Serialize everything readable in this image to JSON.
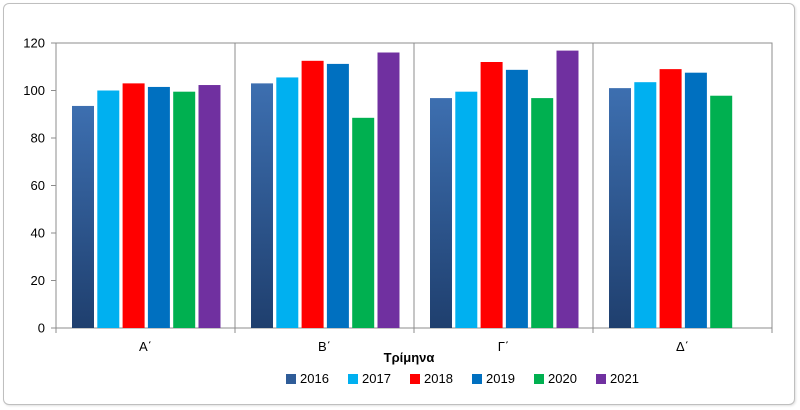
{
  "chart_data": {
    "type": "bar",
    "title": "",
    "xlabel": "Τρίμηνα",
    "ylabel": "",
    "categories": [
      "Α΄",
      "Β΄",
      "Γ΄",
      "Δ΄"
    ],
    "ylim": [
      0,
      120
    ],
    "yticks": [
      0,
      20,
      40,
      60,
      80,
      100,
      120
    ],
    "grid": "vertical category separators",
    "legend_position": "bottom",
    "series": [
      {
        "name": "2016",
        "color": "#2f5c98",
        "values": [
          93.5,
          103,
          96.8,
          101
        ]
      },
      {
        "name": "2017",
        "color": "#00b0f0",
        "values": [
          100,
          105.5,
          99.5,
          103.5
        ]
      },
      {
        "name": "2018",
        "color": "#ff0000",
        "values": [
          103,
          112.5,
          112,
          109
        ]
      },
      {
        "name": "2019",
        "color": "#0070c0",
        "values": [
          101.5,
          111.2,
          108.7,
          107.5
        ]
      },
      {
        "name": "2020",
        "color": "#00b050",
        "values": [
          99.5,
          88.5,
          96.8,
          97.8
        ]
      },
      {
        "name": "2021",
        "color": "#7030a0",
        "values": [
          102.3,
          116,
          116.8,
          null
        ]
      }
    ]
  }
}
